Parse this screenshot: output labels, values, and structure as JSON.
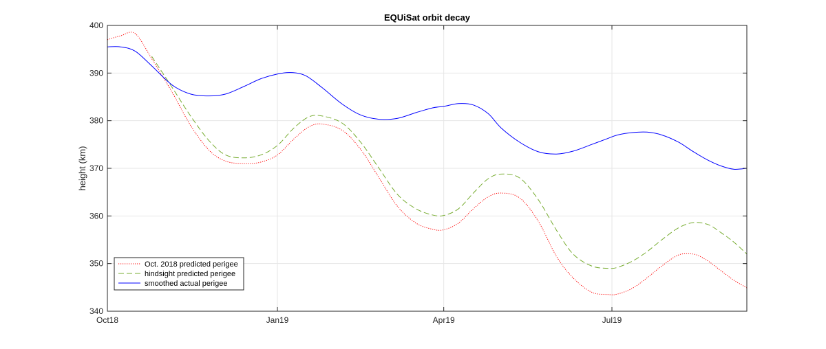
{
  "chart_data": {
    "type": "line",
    "title": "EQUiSat orbit decay",
    "xlabel": "",
    "ylabel": "height (km)",
    "x_ticks": [
      "Oct18",
      "Jan19",
      "Apr19",
      "Jul19"
    ],
    "x_tick_dates": [
      "2018-10-01",
      "2019-01-01",
      "2019-04-01",
      "2019-07-01"
    ],
    "xlim": [
      "2018-10-01",
      "2019-09-12"
    ],
    "ylim": [
      340,
      400
    ],
    "y_ticks": [
      340,
      350,
      360,
      370,
      380,
      390,
      400
    ],
    "grid": true,
    "box": true,
    "legend_position": "bottom-left",
    "series": [
      {
        "name": "Oct. 2018 predicted perigee",
        "color": "#ff0000",
        "style": "dotted",
        "x": [
          "2018-10-01",
          "2018-10-08",
          "2018-10-16",
          "2018-10-25",
          "2018-11-05",
          "2018-11-15",
          "2018-11-25",
          "2018-12-04",
          "2018-12-14",
          "2018-12-23",
          "2019-01-01",
          "2019-01-10",
          "2019-01-18",
          "2019-01-25",
          "2019-02-05",
          "2019-02-15",
          "2019-02-25",
          "2019-03-07",
          "2019-03-17",
          "2019-03-26",
          "2019-04-01",
          "2019-04-09",
          "2019-04-17",
          "2019-04-25",
          "2019-05-02",
          "2019-05-12",
          "2019-05-22",
          "2019-06-01",
          "2019-06-10",
          "2019-06-20",
          "2019-06-29",
          "2019-07-04",
          "2019-07-12",
          "2019-07-20",
          "2019-07-28",
          "2019-08-06",
          "2019-08-14",
          "2019-08-21",
          "2019-08-29",
          "2019-09-05",
          "2019-09-12"
        ],
        "y": [
          397.0,
          397.8,
          398.3,
          393.0,
          386.0,
          379.0,
          373.8,
          371.5,
          371.0,
          371.3,
          372.8,
          376.2,
          378.7,
          379.3,
          378.0,
          374.0,
          368.0,
          362.0,
          358.5,
          357.2,
          357.1,
          358.5,
          361.5,
          364.0,
          364.8,
          363.8,
          359.0,
          351.5,
          347.0,
          344.0,
          343.5,
          343.6,
          344.8,
          347.0,
          349.5,
          351.8,
          352.0,
          350.8,
          348.5,
          346.5,
          344.9
        ]
      },
      {
        "name": "hindsight predicted perigee",
        "color": "#77ac30",
        "style": "dashed",
        "x": [
          "2018-10-25",
          "2018-11-05",
          "2018-11-15",
          "2018-11-25",
          "2018-12-04",
          "2018-12-14",
          "2018-12-23",
          "2019-01-01",
          "2019-01-10",
          "2019-01-18",
          "2019-01-25",
          "2019-02-05",
          "2019-02-15",
          "2019-02-25",
          "2019-03-07",
          "2019-03-17",
          "2019-03-26",
          "2019-04-01",
          "2019-04-09",
          "2019-04-17",
          "2019-04-25",
          "2019-05-02",
          "2019-05-12",
          "2019-05-22",
          "2019-06-01",
          "2019-06-10",
          "2019-06-20",
          "2019-06-29",
          "2019-07-04",
          "2019-07-12",
          "2019-07-20",
          "2019-07-28",
          "2019-08-06",
          "2019-08-14",
          "2019-08-22",
          "2019-08-29",
          "2019-09-05",
          "2019-09-12"
        ],
        "y": [
          393.5,
          387.0,
          381.0,
          375.8,
          372.8,
          372.2,
          372.8,
          374.8,
          378.5,
          380.8,
          381.0,
          379.5,
          375.5,
          370.0,
          364.5,
          361.5,
          360.2,
          360.1,
          361.5,
          364.8,
          367.8,
          368.8,
          368.0,
          363.5,
          357.0,
          352.0,
          349.5,
          349.0,
          349.2,
          350.5,
          352.5,
          355.0,
          357.5,
          358.6,
          358.2,
          356.5,
          354.5,
          352.0
        ]
      },
      {
        "name": "smoothed actual perigee",
        "color": "#0000ff",
        "style": "solid",
        "x": [
          "2018-10-01",
          "2018-10-08",
          "2018-10-16",
          "2018-10-25",
          "2018-11-05",
          "2018-11-15",
          "2018-11-25",
          "2018-12-04",
          "2018-12-14",
          "2018-12-23",
          "2019-01-01",
          "2019-01-08",
          "2019-01-16",
          "2019-01-25",
          "2019-02-05",
          "2019-02-15",
          "2019-02-25",
          "2019-03-07",
          "2019-03-17",
          "2019-03-26",
          "2019-04-01",
          "2019-04-09",
          "2019-04-17",
          "2019-04-25",
          "2019-05-02",
          "2019-05-12",
          "2019-05-22",
          "2019-06-01",
          "2019-06-10",
          "2019-06-20",
          "2019-06-29",
          "2019-07-04",
          "2019-07-12",
          "2019-07-20",
          "2019-07-28",
          "2019-08-06",
          "2019-08-14",
          "2019-08-22",
          "2019-08-29",
          "2019-09-05",
          "2019-09-12"
        ],
        "y": [
          395.5,
          395.5,
          394.6,
          391.5,
          387.5,
          385.6,
          385.2,
          385.6,
          387.2,
          388.8,
          389.8,
          390.1,
          389.5,
          387.0,
          383.5,
          381.2,
          380.3,
          380.5,
          381.7,
          382.7,
          383.0,
          383.6,
          383.3,
          381.5,
          378.5,
          375.5,
          373.5,
          373.0,
          373.6,
          375.0,
          376.3,
          377.0,
          377.5,
          377.6,
          377.0,
          375.5,
          373.5,
          371.7,
          370.5,
          369.8,
          370.0
        ]
      }
    ]
  }
}
